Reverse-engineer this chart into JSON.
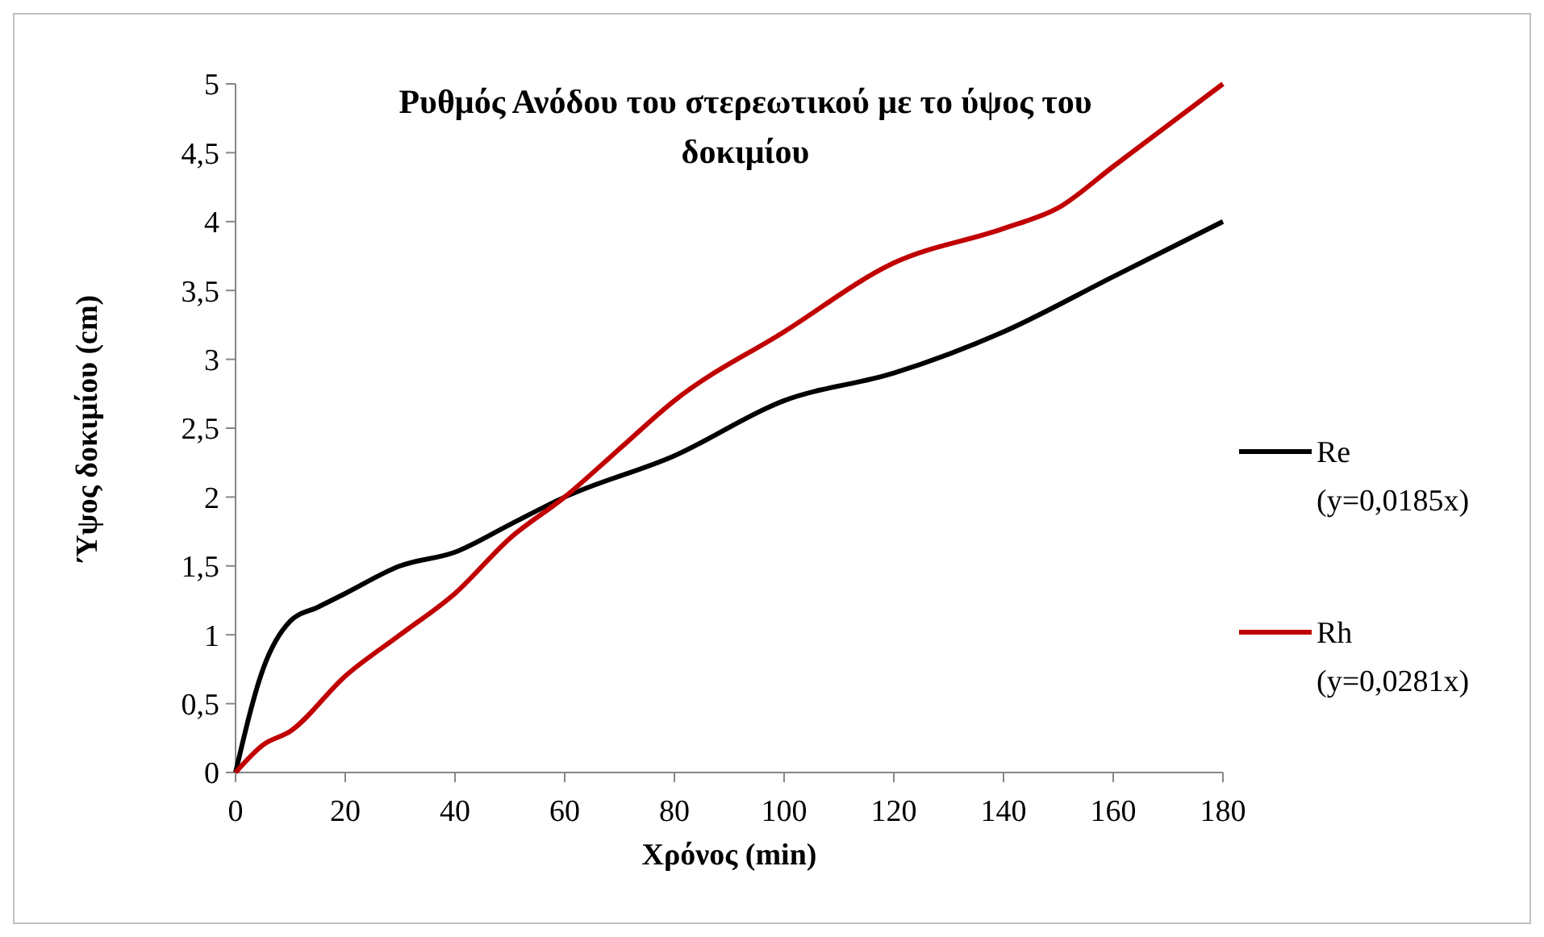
{
  "chart_data": {
    "type": "line",
    "title": "Ρυθμός Ανόδου του στερεωτικού με το ύψος του δοκιμίου",
    "xlabel": "Χρόνος (min)",
    "ylabel": "Ύψος δοκιμίου (cm)",
    "xlim": [
      0,
      180
    ],
    "xticks": [
      0,
      20,
      40,
      60,
      80,
      100,
      120,
      140,
      160,
      180
    ],
    "ylim": [
      0,
      5
    ],
    "yticks": [
      {
        "value": 0,
        "label": "0"
      },
      {
        "value": 0.5,
        "label": "0,5"
      },
      {
        "value": 1,
        "label": "1"
      },
      {
        "value": 1.5,
        "label": "1,5"
      },
      {
        "value": 2,
        "label": "2"
      },
      {
        "value": 2.5,
        "label": "2,5"
      },
      {
        "value": 3,
        "label": "3"
      },
      {
        "value": 3.5,
        "label": "3,5"
      },
      {
        "value": 4,
        "label": "4"
      },
      {
        "value": 4.5,
        "label": "4,5"
      },
      {
        "value": 5,
        "label": "5"
      }
    ],
    "legend": "right",
    "grid": false,
    "marker": "none",
    "line_style": "solid",
    "series": [
      {
        "name": "Re (y=0,0185x)",
        "color": "#000000",
        "x": [
          0,
          5,
          10,
          15,
          20,
          30,
          40,
          50,
          60,
          80,
          100,
          120,
          140,
          160,
          180
        ],
        "values": [
          0,
          0.75,
          1.1,
          1.2,
          1.3,
          1.5,
          1.6,
          1.8,
          2.0,
          2.3,
          2.7,
          2.9,
          3.2,
          3.6,
          4.0
        ]
      },
      {
        "name": "Rh (y=0,0281x)",
        "color": "#c00000",
        "x": [
          0,
          5,
          10,
          20,
          30,
          40,
          50,
          60,
          70,
          80,
          100,
          120,
          140,
          150,
          160,
          180
        ],
        "values": [
          0,
          0.2,
          0.3,
          0.7,
          1.0,
          1.3,
          1.7,
          2.0,
          2.35,
          2.7,
          3.2,
          3.7,
          3.95,
          4.1,
          4.4,
          5.0
        ]
      }
    ]
  }
}
